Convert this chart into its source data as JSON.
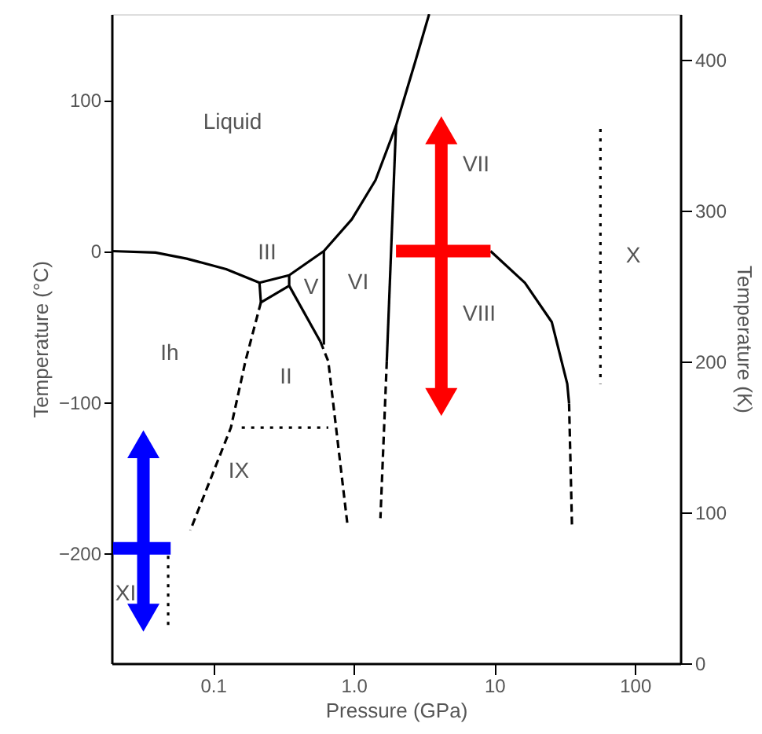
{
  "chart_data": {
    "type": "line",
    "xlabel": "Pressure (GPa)",
    "ylabel": "Temperature (°C)",
    "y2label": "Temperature (K)",
    "log": "x",
    "xlim": [
      0.019,
      210
    ],
    "xticks": [
      {
        "value": 0.1,
        "label": "0.1"
      },
      {
        "value": 1,
        "label": "1.0"
      },
      10,
      100
    ],
    "ylim": [
      -273.15,
      157
    ],
    "yticks": [
      -200,
      -100,
      0,
      100
    ],
    "y2lim": [
      0,
      430
    ],
    "y2ticks": [
      0,
      100,
      200,
      300,
      400
    ],
    "grid": false,
    "series": [
      {
        "color": "#000000",
        "line_style": "solid",
        "x": [
          0.019,
          0.039,
          0.065,
          0.124,
          0.214,
          0.348,
          0.614,
          0.97,
          1.43,
          2.0,
          2.73,
          3.44
        ],
        "values": [
          0,
          -1,
          -5,
          -12,
          -21,
          -16,
          0,
          21,
          47,
          83,
          125,
          157
        ]
      },
      {
        "color": "#000000",
        "line_style": "solid",
        "x": [
          0.214,
          0.219,
          0.348,
          0.348
        ],
        "values": [
          -21,
          -34,
          -23,
          -16
        ]
      },
      {
        "color": "#000000",
        "line_style": "solid",
        "x": [
          0.348,
          0.58
        ],
        "values": [
          -23,
          -60
        ]
      },
      {
        "color": "#000000",
        "line_style": "solid",
        "x": [
          0.614,
          0.614
        ],
        "values": [
          0,
          -62
        ]
      },
      {
        "color": "#000000",
        "line_style": "solid",
        "x": [
          2.0,
          1.72
        ],
        "values": [
          83,
          -73
        ]
      },
      {
        "color": "#000000",
        "line_style": "solid",
        "x": [
          9.4,
          16.5,
          25.6,
          33,
          34
        ],
        "values": [
          0,
          -21,
          -47,
          -88,
          -101
        ]
      },
      {
        "color": "#000000",
        "line_style": "dashed",
        "x": [
          0.219,
          0.17,
          0.134,
          0.069
        ],
        "values": [
          -34,
          -73,
          -117,
          -185
        ]
      },
      {
        "color": "#000000",
        "line_style": "dashed",
        "x": [
          0.58,
          0.66,
          0.9
        ],
        "values": [
          -60,
          -73,
          -180
        ]
      },
      {
        "color": "#000000",
        "line_style": "dashed",
        "x": [
          1.72,
          1.55
        ],
        "values": [
          -73,
          -177
        ]
      },
      {
        "color": "#000000",
        "line_style": "dashed",
        "x": [
          34,
          35.7
        ],
        "values": [
          -101,
          -184
        ]
      },
      {
        "color": "#000000",
        "line_style": "dotted",
        "x": [
          0.16,
          0.66
        ],
        "values": [
          -117,
          -117
        ]
      },
      {
        "color": "#000000",
        "line_style": "dotted",
        "x": [
          56.8,
          56.8
        ],
        "values": [
          81,
          -88
        ]
      },
      {
        "color": "#000000",
        "line_style": "dotted",
        "x": [
          0.048,
          0.048
        ],
        "values": [
          -202,
          -249
        ]
      },
      {
        "color": "#ff0000",
        "line_style": "solid",
        "marker": "triangle",
        "x": [
          4.2,
          4.2
        ],
        "values": [
          80,
          -100
        ]
      },
      {
        "color": "#ff0000",
        "line_style": "solid",
        "marker": "none",
        "x": [
          2.0,
          9.4
        ],
        "values": [
          0,
          0
        ]
      },
      {
        "color": "#0000ff",
        "line_style": "solid",
        "marker": "triangle",
        "x": [
          0.032,
          0.032
        ],
        "values": [
          -128,
          -243
        ]
      },
      {
        "color": "#0000ff",
        "line_style": "solid",
        "marker": "none",
        "x": [
          0.0195,
          0.05
        ],
        "values": [
          -197,
          -197
        ]
      }
    ],
    "annotations": [
      "Liquid",
      "III",
      "V",
      "VI",
      "Ih",
      "II",
      "IX",
      "VII",
      "VIII",
      "X",
      "XI"
    ]
  }
}
